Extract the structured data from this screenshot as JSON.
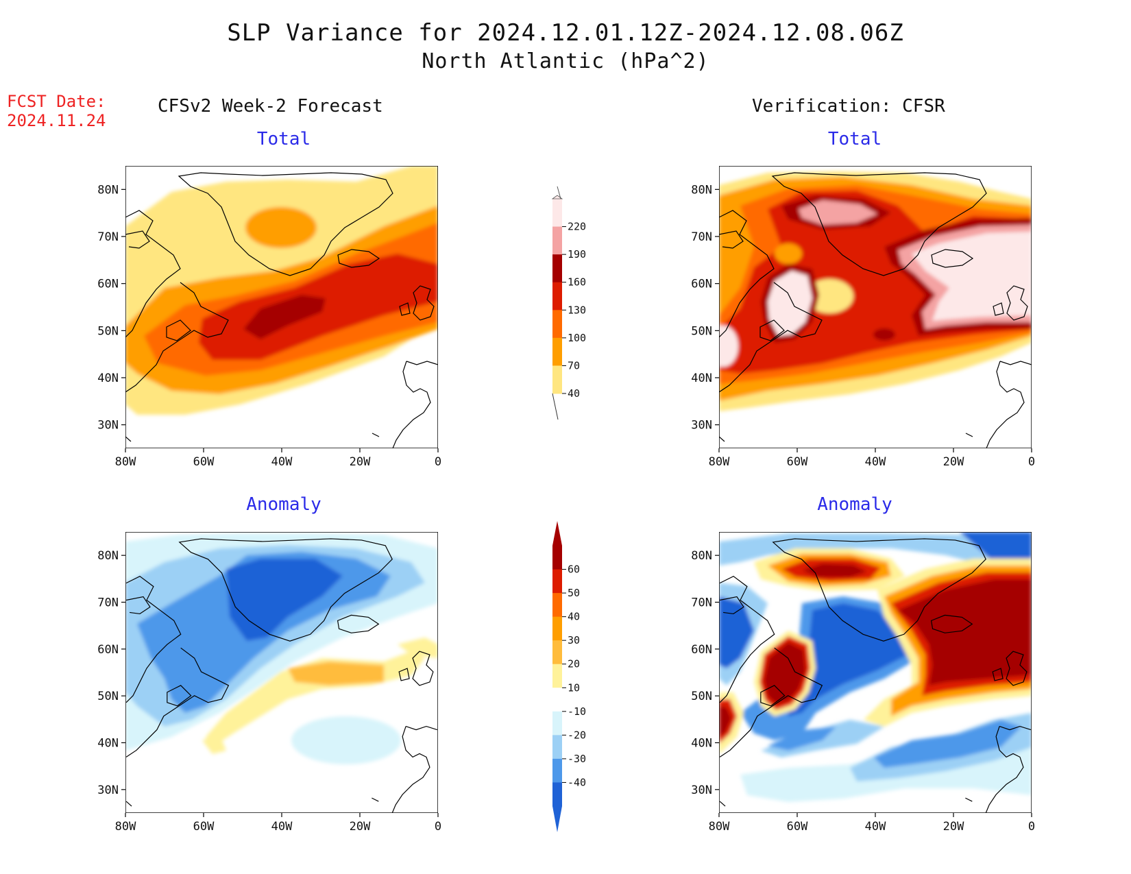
{
  "header": {
    "title": "SLP Variance for 2024.12.01.12Z-2024.12.08.06Z",
    "subtitle": "North Atlantic (hPa^2)",
    "fcst_label": "FCST Date:",
    "fcst_date": "2024.11.24",
    "left_column": "CFSv2 Week-2 Forecast",
    "right_column": "Verification: CFSR"
  },
  "panels": {
    "fc_total": {
      "title": "Total"
    },
    "ver_total": {
      "title": "Total"
    },
    "fc_anom": {
      "title": "Anomaly"
    },
    "ver_anom": {
      "title": "Anomaly"
    }
  },
  "axes": {
    "lat_ticks": [
      "80N",
      "70N",
      "60N",
      "50N",
      "40N",
      "30N"
    ],
    "lon_ticks": [
      "80W",
      "60W",
      "40W",
      "20W",
      "0"
    ]
  },
  "colorbars": {
    "total": {
      "labels": [
        "220",
        "190",
        "160",
        "130",
        "100",
        "70",
        "40"
      ],
      "colors": [
        "#fde8e8",
        "#f4a3a3",
        "#a50000",
        "#dd1c00",
        "#ff6a00",
        "#ff9e00",
        "#ffe680"
      ]
    },
    "anomaly": {
      "labels": [
        "60",
        "50",
        "40",
        "30",
        "20",
        "10",
        "-10",
        "-20",
        "-30",
        "-40"
      ],
      "colors": [
        "#a50000",
        "#dd1c00",
        "#ff6a00",
        "#ff9e00",
        "#ffbc3c",
        "#fff29a",
        "#ffffff",
        "#d8f4fb",
        "#9cd0f5",
        "#4d98ea",
        "#1f62d6"
      ]
    },
    "colors_total_levels": [
      "#ffe680",
      "#ff9e00",
      "#ff6a00",
      "#dd1c00",
      "#a50000",
      "#f4a3a3",
      "#fde8e8"
    ],
    "colors_anom_pos": [
      "#fff29a",
      "#ffbc3c",
      "#ff9e00",
      "#ff6a00",
      "#dd1c00",
      "#a50000"
    ],
    "colors_anom_neg": [
      "#d8f4fb",
      "#9cd0f5",
      "#4d98ea",
      "#1f62d6"
    ]
  }
}
